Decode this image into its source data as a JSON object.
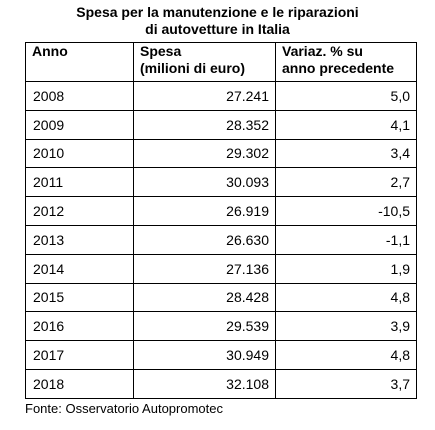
{
  "title": {
    "line1": "Spesa per la manutenzione e le riparazioni",
    "line2": "di autovetture in Italia"
  },
  "chart_data": {
    "type": "table",
    "title": "Spesa per la manutenzione e le riparazioni di autovetture in Italia",
    "columns": [
      {
        "line1": "Anno",
        "line2": ""
      },
      {
        "line1": "Spesa",
        "line2": "(milioni di euro)"
      },
      {
        "line1": "Variaz. % su",
        "line2": "anno precedente"
      }
    ],
    "rows": [
      [
        "2008",
        "27.241",
        "5,0"
      ],
      [
        "2009",
        "28.352",
        "4,1"
      ],
      [
        "2010",
        "29.302",
        "3,4"
      ],
      [
        "2011",
        "30.093",
        "2,7"
      ],
      [
        "2012",
        "26.919",
        "-10,5"
      ],
      [
        "2013",
        "26.630",
        "-1,1"
      ],
      [
        "2014",
        "27.136",
        "1,9"
      ],
      [
        "2015",
        "28.428",
        "4,8"
      ],
      [
        "2016",
        "29.539",
        "3,9"
      ],
      [
        "2017",
        "30.949",
        "4,8"
      ],
      [
        "2018",
        "32.108",
        "3,7"
      ]
    ]
  },
  "source": "Fonte: Osservatorio Autopromotec"
}
